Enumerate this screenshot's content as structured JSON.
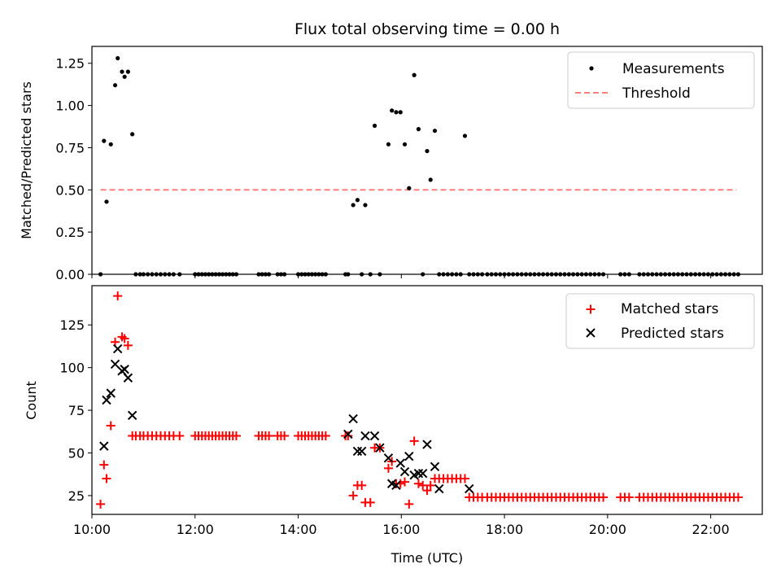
{
  "title": "Flux total observing time = 0.00 h",
  "colors": {
    "measurements": "#000000",
    "threshold": "#ff7f7f",
    "matched": "#ff0000",
    "predicted": "#000000"
  },
  "chart_data": [
    {
      "type": "scatter",
      "ylabel": "Matched/Predicted stars",
      "xlim": [
        "10:00",
        "23:00"
      ],
      "ylim": [
        0,
        1.35
      ],
      "yticks": [
        "0.00",
        "0.25",
        "0.50",
        "0.75",
        "1.00",
        "1.25"
      ],
      "legend": {
        "placement": "upper right",
        "entries": [
          "Measurements",
          "Threshold"
        ]
      },
      "threshold": {
        "name": "Threshold",
        "value": 0.5,
        "x_range": [
          "10:10",
          "22:30"
        ]
      },
      "series": [
        {
          "name": "Measurements",
          "x": [
            "10:10",
            "10:14",
            "10:17",
            "10:22",
            "10:27",
            "10:30",
            "10:35",
            "10:38",
            "10:42",
            "10:47",
            "10:51",
            "10:56",
            "11:00",
            "11:05",
            "11:10",
            "11:15",
            "11:20",
            "11:25",
            "11:30",
            "11:35",
            "11:42",
            "12:00",
            "12:04",
            "12:08",
            "12:12",
            "12:16",
            "12:20",
            "12:24",
            "12:28",
            "12:32",
            "12:36",
            "12:40",
            "12:44",
            "12:48",
            "13:14",
            "13:18",
            "13:22",
            "13:26",
            "13:36",
            "13:40",
            "13:44",
            "14:00",
            "14:04",
            "14:08",
            "14:12",
            "14:16",
            "14:20",
            "14:24",
            "14:28",
            "14:32",
            "14:55",
            "14:58",
            "15:04",
            "15:09",
            "15:14",
            "15:18",
            "15:24",
            "15:29",
            "15:35",
            "15:45",
            "15:49",
            "15:54",
            "15:59",
            "16:04",
            "16:09",
            "16:15",
            "16:20",
            "16:25",
            "16:30",
            "16:34",
            "16:39",
            "16:44",
            "16:49",
            "16:54",
            "16:59",
            "17:04",
            "17:09",
            "17:14",
            "17:19",
            "17:24",
            "17:29",
            "17:34",
            "17:40",
            "17:45",
            "17:50",
            "17:55",
            "18:00",
            "18:05",
            "18:10",
            "18:15",
            "18:20",
            "18:25",
            "18:30",
            "18:35",
            "18:40",
            "18:45",
            "18:50",
            "18:55",
            "19:00",
            "19:05",
            "19:10",
            "19:15",
            "19:20",
            "19:25",
            "19:30",
            "19:35",
            "19:40",
            "19:45",
            "19:50",
            "19:55",
            "20:15",
            "20:20",
            "20:25",
            "20:37",
            "20:42",
            "20:47",
            "20:52",
            "20:57",
            "21:02",
            "21:07",
            "21:12",
            "21:17",
            "21:22",
            "21:27",
            "21:32",
            "21:37",
            "21:42",
            "21:47",
            "21:52",
            "21:57",
            "22:02",
            "22:07",
            "22:12",
            "22:17",
            "22:22",
            "22:27",
            "22:32"
          ],
          "y": [
            0.0,
            0.79,
            0.43,
            0.77,
            1.12,
            1.28,
            1.2,
            1.17,
            1.2,
            0.83,
            0.0,
            0.0,
            0.0,
            0.0,
            0.0,
            0.0,
            0.0,
            0.0,
            0.0,
            0.0,
            0.0,
            0.0,
            0.0,
            0.0,
            0.0,
            0.0,
            0.0,
            0.0,
            0.0,
            0.0,
            0.0,
            0.0,
            0.0,
            0.0,
            0.0,
            0.0,
            0.0,
            0.0,
            0.0,
            0.0,
            0.0,
            0.0,
            0.0,
            0.0,
            0.0,
            0.0,
            0.0,
            0.0,
            0.0,
            0.0,
            0.0,
            0.0,
            0.41,
            0.44,
            0.0,
            0.41,
            0.0,
            0.88,
            0.0,
            0.77,
            0.97,
            0.96,
            0.96,
            0.77,
            0.51,
            1.18,
            0.86,
            0.0,
            0.73,
            0.56,
            0.85,
            0.0,
            0.0,
            0.0,
            0.0,
            0.0,
            0.0,
            0.82,
            0.0,
            0.0,
            0.0,
            0.0,
            0.0,
            0.0,
            0.0,
            0.0,
            0.0,
            0.0,
            0.0,
            0.0,
            0.0,
            0.0,
            0.0,
            0.0,
            0.0,
            0.0,
            0.0,
            0.0,
            0.0,
            0.0,
            0.0,
            0.0,
            0.0,
            0.0,
            0.0,
            0.0,
            0.0,
            0.0,
            0.0,
            0.0,
            0.0,
            0.0,
            0.0,
            0.0,
            0.0,
            0.0,
            0.0,
            0.0,
            0.0,
            0.0,
            0.0,
            0.0,
            0.0,
            0.0,
            0.0,
            0.0,
            0.0,
            0.0,
            0.0,
            0.0,
            0.0,
            0.0,
            0.0,
            0.0,
            0.0,
            0.0,
            0.0
          ]
        }
      ]
    },
    {
      "type": "scatter",
      "ylabel": "Count",
      "xlabel": "Time (UTC)",
      "xlim": [
        "10:00",
        "23:00"
      ],
      "xticks": [
        "10:00",
        "12:00",
        "14:00",
        "16:00",
        "18:00",
        "20:00",
        "22:00"
      ],
      "ylim": [
        14,
        148
      ],
      "yticks": [
        "25",
        "50",
        "75",
        "100",
        "125"
      ],
      "legend": {
        "placement": "upper right",
        "entries": [
          "Matched stars",
          "Predicted stars"
        ]
      },
      "series": [
        {
          "name": "Matched stars",
          "x": [
            "10:10",
            "10:14",
            "10:17",
            "10:22",
            "10:27",
            "10:30",
            "10:35",
            "10:38",
            "10:42",
            "10:47",
            "10:51",
            "10:56",
            "11:00",
            "11:05",
            "11:10",
            "11:15",
            "11:20",
            "11:25",
            "11:30",
            "11:35",
            "11:42",
            "12:00",
            "12:04",
            "12:08",
            "12:12",
            "12:16",
            "12:20",
            "12:24",
            "12:28",
            "12:32",
            "12:36",
            "12:40",
            "12:44",
            "12:48",
            "13:14",
            "13:18",
            "13:22",
            "13:26",
            "13:36",
            "13:40",
            "13:44",
            "14:00",
            "14:04",
            "14:08",
            "14:12",
            "14:16",
            "14:20",
            "14:24",
            "14:28",
            "14:32",
            "14:55",
            "14:58",
            "15:04",
            "15:09",
            "15:14",
            "15:18",
            "15:24",
            "15:29",
            "15:35",
            "15:45",
            "15:49",
            "15:54",
            "15:59",
            "16:04",
            "16:09",
            "16:15",
            "16:20",
            "16:25",
            "16:30",
            "16:34",
            "16:39",
            "16:44",
            "16:49",
            "16:54",
            "16:59",
            "17:04",
            "17:09",
            "17:14",
            "17:19",
            "17:24",
            "17:29",
            "17:34",
            "17:40",
            "17:45",
            "17:50",
            "17:55",
            "18:00",
            "18:05",
            "18:10",
            "18:15",
            "18:20",
            "18:25",
            "18:30",
            "18:35",
            "18:40",
            "18:45",
            "18:50",
            "18:55",
            "19:00",
            "19:05",
            "19:10",
            "19:15",
            "19:20",
            "19:25",
            "19:30",
            "19:35",
            "19:40",
            "19:45",
            "19:50",
            "19:55",
            "20:15",
            "20:20",
            "20:25",
            "20:37",
            "20:42",
            "20:47",
            "20:52",
            "20:57",
            "21:02",
            "21:07",
            "21:12",
            "21:17",
            "21:22",
            "21:27",
            "21:32",
            "21:37",
            "21:42",
            "21:47",
            "21:52",
            "21:57",
            "22:02",
            "22:07",
            "22:12",
            "22:17",
            "22:22",
            "22:27",
            "22:32"
          ],
          "y": [
            20,
            43,
            35,
            66,
            115,
            142,
            118,
            117,
            113,
            60,
            60,
            60,
            60,
            60,
            60,
            60,
            60,
            60,
            60,
            60,
            60,
            60,
            60,
            60,
            60,
            60,
            60,
            60,
            60,
            60,
            60,
            60,
            60,
            60,
            60,
            60,
            60,
            60,
            60,
            60,
            60,
            60,
            60,
            60,
            60,
            60,
            60,
            60,
            60,
            60,
            60,
            60,
            25,
            31,
            31,
            21,
            21,
            53,
            53,
            41,
            45,
            32,
            32,
            33,
            20,
            57,
            32,
            31,
            28,
            31,
            35,
            35,
            35,
            35,
            35,
            35,
            35,
            35,
            24,
            24,
            24,
            24,
            24,
            24,
            24,
            24,
            24,
            24,
            24,
            24,
            24,
            24,
            24,
            24,
            24,
            24,
            24,
            24,
            24,
            24,
            24,
            24,
            24,
            24,
            24,
            24,
            24,
            24,
            24,
            24,
            24,
            24,
            24,
            24,
            24,
            24,
            24,
            24,
            24,
            24,
            24,
            24,
            24,
            24,
            24,
            24,
            24,
            24,
            24,
            24,
            24,
            24,
            24,
            24,
            24,
            24,
            24
          ]
        },
        {
          "name": "Predicted stars",
          "x": [
            "10:14",
            "10:17",
            "10:22",
            "10:27",
            "10:30",
            "10:35",
            "10:38",
            "10:42",
            "10:47",
            "14:58",
            "15:04",
            "15:09",
            "15:14",
            "15:18",
            "15:29",
            "15:35",
            "15:45",
            "15:49",
            "15:54",
            "15:59",
            "16:04",
            "16:09",
            "16:15",
            "16:20",
            "16:25",
            "16:30",
            "16:39",
            "16:44",
            "17:19"
          ],
          "y": [
            54,
            81,
            85,
            102,
            111,
            98,
            99,
            94,
            72,
            61,
            70,
            51,
            51,
            60,
            60,
            53,
            47,
            32,
            31,
            44,
            39,
            48,
            37,
            38,
            38,
            55,
            42,
            29,
            29
          ]
        }
      ]
    }
  ]
}
